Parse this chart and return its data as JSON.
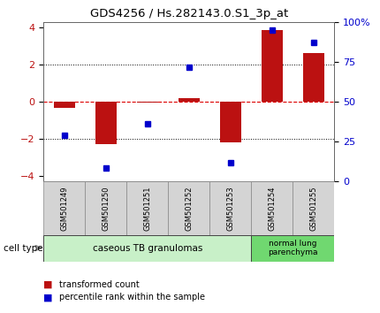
{
  "title": "GDS4256 / Hs.282143.0.S1_3p_at",
  "samples": [
    "GSM501249",
    "GSM501250",
    "GSM501251",
    "GSM501252",
    "GSM501253",
    "GSM501254",
    "GSM501255"
  ],
  "red_values": [
    -0.35,
    -2.3,
    -0.05,
    0.2,
    -2.2,
    3.85,
    2.6
  ],
  "blue_values": [
    -1.8,
    -3.55,
    -1.2,
    1.85,
    -3.3,
    3.85,
    3.2
  ],
  "cell_types": [
    {
      "label": "caseous TB granulomas",
      "count": 5,
      "color": "#c8f0c8"
    },
    {
      "label": "normal lung\nparenchyma",
      "count": 2,
      "color": "#70d870"
    }
  ],
  "ylim": [
    -4.3,
    4.3
  ],
  "yticks": [
    -4,
    -2,
    0,
    2,
    4
  ],
  "right_yticks": [
    0,
    25,
    50,
    75,
    100
  ],
  "right_ylabels": [
    "0",
    "25",
    "50",
    "75",
    "100%"
  ],
  "bar_color": "#bb1111",
  "dot_color": "#0000cc",
  "background_color": "#ffffff",
  "zero_line_color": "#dd0000",
  "dotted_color": "#000000",
  "legend_red": "transformed count",
  "legend_blue": "percentile rank within the sample",
  "sample_box_color": "#d4d4d4",
  "sample_box_edge": "#888888"
}
